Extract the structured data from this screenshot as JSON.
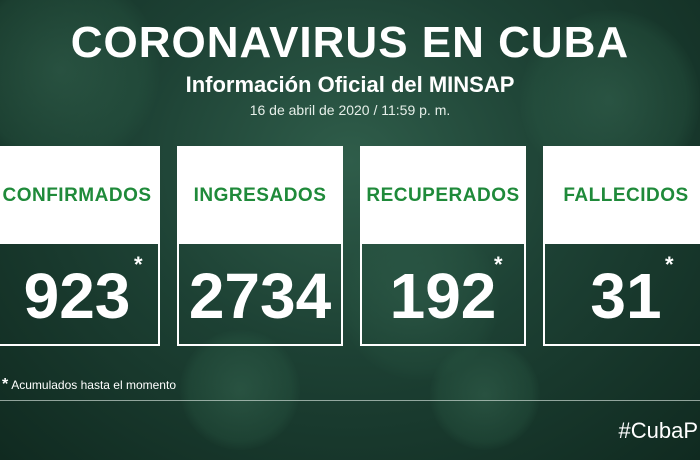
{
  "header": {
    "title": "CORONAVIRUS EN CUBA",
    "subtitle": "Información Oficial del MINSAP",
    "date": "16 de abril de 2020 / 11:59 p. m."
  },
  "cards": [
    {
      "label": "CONFIRMADOS",
      "value": "923",
      "asterisk": "*"
    },
    {
      "label": "INGRESADOS",
      "value": "2734",
      "asterisk": ""
    },
    {
      "label": "RECUPERADOS",
      "value": "192",
      "asterisk": "*"
    },
    {
      "label": "FALLECIDOS",
      "value": "31",
      "asterisk": "*"
    }
  ],
  "footnote": {
    "marker": "*",
    "text": "Acumulados hasta el momento"
  },
  "hashtag": "#CubaP",
  "colors": {
    "label_green": "#1f8a3a",
    "background": "#1d4134"
  }
}
